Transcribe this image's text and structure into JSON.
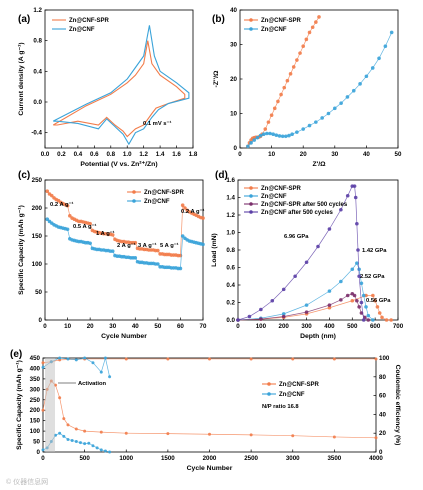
{
  "colors": {
    "cnf_spr": "#f27c4a",
    "cnf": "#3aa3d9",
    "cnf_spr_500": "#7b2f6b",
    "cnf_500": "#5b3fa6"
  },
  "watermark": "© 仪器信息网",
  "chart_data": [
    {
      "id": "a",
      "panel": "(a)",
      "type": "line",
      "xlabel": "Potential (V vs. Zn²⁺/Zn)",
      "ylabel": "Current density (A g⁻¹)",
      "xlim": [
        0,
        1.8
      ],
      "ylim": [
        -0.6,
        1.2
      ],
      "xticks": [
        "0.0",
        "0.2",
        "0.4",
        "0.6",
        "0.8",
        "1.0",
        "1.2",
        "1.4",
        "1.6",
        "1.8"
      ],
      "yticks": [
        "-0.4",
        "0.0",
        "0.4",
        "0.8",
        "1.2"
      ],
      "annotation": "0.1 mV s⁻¹",
      "legend": [
        "Zn@CNF-SPR",
        "Zn@CNF"
      ],
      "series": [
        {
          "name": "Zn@CNF-SPR",
          "color": "#f27c4a",
          "x": [
            0.1,
            0.5,
            0.8,
            1.0,
            1.1,
            1.2,
            1.25,
            1.3,
            1.4,
            1.6,
            1.7,
            1.7,
            1.5,
            1.35,
            1.3,
            1.2,
            1.1,
            1.0,
            0.95,
            0.85,
            0.75,
            0.65,
            0.4,
            0.15,
            0.1
          ],
          "y": [
            -0.3,
            -0.05,
            0.1,
            0.25,
            0.35,
            0.5,
            0.8,
            0.5,
            0.35,
            0.2,
            0.1,
            0.05,
            -0.02,
            -0.08,
            -0.15,
            -0.3,
            -0.35,
            -0.45,
            -0.38,
            -0.3,
            -0.2,
            -0.3,
            -0.25,
            -0.3,
            -0.3
          ]
        },
        {
          "name": "Zn@CNF",
          "color": "#3aa3d9",
          "x": [
            0.1,
            0.5,
            0.8,
            1.0,
            1.1,
            1.2,
            1.27,
            1.33,
            1.4,
            1.6,
            1.75,
            1.75,
            1.5,
            1.38,
            1.3,
            1.2,
            1.1,
            1.02,
            0.95,
            0.85,
            0.75,
            0.65,
            0.4,
            0.15,
            0.1
          ],
          "y": [
            -0.25,
            -0.03,
            0.12,
            0.3,
            0.45,
            0.6,
            1.0,
            0.6,
            0.4,
            0.25,
            0.12,
            0.05,
            -0.02,
            -0.1,
            -0.2,
            -0.35,
            -0.4,
            -0.55,
            -0.42,
            -0.32,
            -0.22,
            -0.35,
            -0.28,
            -0.25,
            -0.25
          ]
        }
      ]
    },
    {
      "id": "b",
      "panel": "(b)",
      "type": "scatter",
      "xlabel": "Z'/Ω",
      "ylabel": "-Z''/Ω",
      "xlim": [
        0,
        50
      ],
      "ylim": [
        0,
        40
      ],
      "xticks": [
        "0",
        "10",
        "20",
        "30",
        "40",
        "50"
      ],
      "yticks": [
        "0",
        "10",
        "20",
        "30",
        "40"
      ],
      "legend": [
        "Zn@CNF-SPR",
        "Zn@CNF"
      ],
      "series": [
        {
          "name": "Zn@CNF-SPR",
          "color": "#f27c4a",
          "x": [
            2.5,
            3,
            3.5,
            4,
            4.5,
            5,
            5.5,
            6,
            6.5,
            7,
            8,
            9,
            10,
            11,
            12,
            13,
            14,
            15,
            16,
            17,
            18,
            19,
            20,
            21,
            22,
            23,
            24,
            25
          ],
          "y": [
            0.5,
            1.5,
            2.3,
            2.8,
            3.0,
            3.1,
            3.1,
            3.2,
            3.4,
            4,
            5.5,
            7.5,
            9.5,
            11.5,
            13.5,
            15.5,
            17.5,
            19.5,
            21.5,
            23.5,
            25.5,
            27.5,
            29.5,
            31.5,
            33.5,
            35,
            36.5,
            38
          ]
        },
        {
          "name": "Zn@CNF",
          "color": "#3aa3d9",
          "x": [
            2.5,
            3.5,
            4.5,
            5.5,
            6.5,
            7.5,
            8.5,
            9.5,
            10.5,
            11.5,
            12.5,
            13.5,
            14.5,
            15.5,
            16.5,
            18,
            20,
            22,
            24,
            26,
            28,
            30,
            32,
            34,
            36,
            38,
            40,
            42,
            44,
            46,
            48
          ],
          "y": [
            0.5,
            1.5,
            2.3,
            3,
            3.6,
            4,
            4.2,
            4.2,
            4.0,
            3.7,
            3.5,
            3.4,
            3.4,
            3.6,
            4.0,
            4.6,
            5.5,
            6.5,
            7.5,
            8.7,
            10,
            11.5,
            13,
            14.8,
            16.6,
            18.6,
            20.8,
            23.2,
            26,
            29.5,
            33.5
          ]
        }
      ]
    },
    {
      "id": "c",
      "panel": "(c)",
      "type": "scatter",
      "xlabel": "Cycle Number",
      "ylabel": "Specific Capacity (mAh g⁻¹)",
      "xlim": [
        0,
        70
      ],
      "ylim": [
        0,
        250
      ],
      "xticks": [
        "0",
        "10",
        "20",
        "30",
        "40",
        "50",
        "60",
        "70"
      ],
      "yticks": [
        "0",
        "50",
        "100",
        "150",
        "200",
        "250"
      ],
      "legend": [
        "Zn@CNF-SPR",
        "Zn@CNF"
      ],
      "rate_labels": [
        "0.2 A g⁻¹",
        "0.5 A g⁻¹",
        "1 A g⁻¹",
        "2 A g⁻¹",
        "3 A g⁻¹",
        "5 A g⁻¹",
        "0.2 A g⁻¹"
      ],
      "series": [
        {
          "name": "Zn@CNF-SPR",
          "color": "#f27c4a",
          "x": [
            1,
            2,
            3,
            4,
            5,
            6,
            7,
            8,
            9,
            10,
            11,
            12,
            13,
            14,
            15,
            16,
            17,
            18,
            19,
            20,
            21,
            22,
            23,
            24,
            25,
            26,
            27,
            28,
            29,
            30,
            31,
            32,
            33,
            34,
            35,
            36,
            37,
            38,
            39,
            40,
            41,
            42,
            43,
            44,
            45,
            46,
            47,
            48,
            49,
            50,
            51,
            52,
            53,
            54,
            55,
            56,
            57,
            58,
            59,
            60,
            61,
            62,
            63,
            64,
            65,
            66,
            67,
            68,
            69,
            70
          ],
          "y": [
            230,
            225,
            222,
            218,
            215,
            213,
            210,
            208,
            206,
            204,
            186,
            182,
            180,
            178,
            176,
            176,
            175,
            174,
            173,
            172,
            160,
            158,
            157,
            156,
            155,
            154,
            154,
            153,
            153,
            152,
            144,
            142,
            141,
            140,
            140,
            139,
            139,
            138,
            138,
            138,
            128,
            127,
            127,
            126,
            126,
            125,
            125,
            125,
            124,
            124,
            118,
            118,
            117,
            117,
            117,
            116,
            116,
            116,
            115,
            115,
            205,
            200,
            196,
            193,
            191,
            189,
            187,
            185,
            183,
            182
          ]
        },
        {
          "name": "Zn@CNF",
          "color": "#3aa3d9",
          "x": [
            1,
            2,
            3,
            4,
            5,
            6,
            7,
            8,
            9,
            10,
            11,
            12,
            13,
            14,
            15,
            16,
            17,
            18,
            19,
            20,
            21,
            22,
            23,
            24,
            25,
            26,
            27,
            28,
            29,
            30,
            31,
            32,
            33,
            34,
            35,
            36,
            37,
            38,
            39,
            40,
            41,
            42,
            43,
            44,
            45,
            46,
            47,
            48,
            49,
            50,
            51,
            52,
            53,
            54,
            55,
            56,
            57,
            58,
            59,
            60,
            61,
            62,
            63,
            64,
            65,
            66,
            67,
            68,
            69,
            70
          ],
          "y": [
            180,
            176,
            173,
            170,
            168,
            166,
            165,
            164,
            163,
            162,
            145,
            143,
            142,
            141,
            140,
            140,
            139,
            138,
            138,
            137,
            128,
            127,
            126,
            126,
            125,
            125,
            124,
            124,
            123,
            123,
            115,
            114,
            114,
            113,
            113,
            112,
            112,
            111,
            111,
            111,
            104,
            103,
            103,
            102,
            102,
            101,
            101,
            101,
            100,
            100,
            95,
            95,
            94,
            94,
            94,
            93,
            93,
            93,
            92,
            92,
            150,
            146,
            143,
            141,
            140,
            139,
            138,
            137,
            136,
            135
          ]
        }
      ]
    },
    {
      "id": "d",
      "panel": "(d)",
      "type": "line",
      "xlabel": "Depth (nm)",
      "ylabel": "Load (mN)",
      "xlim": [
        0,
        700
      ],
      "ylim": [
        0,
        1.6
      ],
      "xticks": [
        "0",
        "100",
        "200",
        "300",
        "400",
        "500",
        "600",
        "700"
      ],
      "yticks": [
        "0.0",
        "0.2",
        "0.4",
        "0.6",
        "0.8",
        "1.0",
        "1.2",
        "1.4",
        "1.6"
      ],
      "legend": [
        "Zn@CNF-SPR",
        "Zn@CNF",
        "Zn@CNF-SPR  after 500 cycles",
        "Zn@CNF    after 500 cycles"
      ],
      "annotations": [
        "6.96 GPa",
        "1.42 GPa",
        "2.52 GPa",
        "0.56 GPa"
      ],
      "series": [
        {
          "name": "Zn@CNF-SPR",
          "color": "#f27c4a",
          "x": [
            0,
            100,
            200,
            300,
            400,
            500,
            560,
            590,
            600,
            610,
            620,
            630,
            650,
            670
          ],
          "y": [
            0,
            0.01,
            0.03,
            0.07,
            0.14,
            0.22,
            0.28,
            0.28,
            0.22,
            0.15,
            0.08,
            0.03,
            0.0,
            0.0
          ]
        },
        {
          "name": "Zn@CNF",
          "color": "#3aa3d9",
          "x": [
            0,
            100,
            200,
            300,
            400,
            450,
            500,
            520,
            530,
            540,
            550,
            560,
            570,
            590
          ],
          "y": [
            0,
            0.02,
            0.07,
            0.17,
            0.33,
            0.44,
            0.58,
            0.65,
            0.58,
            0.42,
            0.28,
            0.15,
            0.05,
            0.0
          ]
        },
        {
          "name": "Zn@CNF-SPR  after 500 cycles",
          "color": "#7b2f6b",
          "x": [
            0,
            100,
            200,
            300,
            400,
            450,
            480,
            500,
            510,
            520,
            530,
            540,
            555,
            570
          ],
          "y": [
            0,
            0.01,
            0.04,
            0.09,
            0.17,
            0.23,
            0.28,
            0.3,
            0.28,
            0.22,
            0.15,
            0.08,
            0.03,
            0.0
          ]
        },
        {
          "name": "Zn@CNF    after 500 cycles",
          "color": "#5b3fa6",
          "x": [
            0,
            50,
            100,
            150,
            200,
            250,
            300,
            350,
            400,
            450,
            480,
            500,
            510,
            515,
            520,
            525,
            530,
            540,
            550
          ],
          "y": [
            0,
            0.04,
            0.12,
            0.22,
            0.35,
            0.5,
            0.66,
            0.84,
            1.04,
            1.26,
            1.42,
            1.53,
            1.53,
            1.4,
            1.1,
            0.8,
            0.5,
            0.2,
            0.0
          ]
        }
      ]
    },
    {
      "id": "e",
      "panel": "(e)",
      "type": "scatter",
      "xlabel": "Cycle Number",
      "ylabel": "Specific Capacity (mAh g⁻¹)",
      "y2label": "Coulombic efficiency (%)",
      "xlim": [
        0,
        4000
      ],
      "ylim": [
        0,
        450
      ],
      "y2lim": [
        0,
        100
      ],
      "xticks": [
        "0",
        "500",
        "1000",
        "1500",
        "2000",
        "2500",
        "3000",
        "3500",
        "4000"
      ],
      "yticks": [
        "0",
        "50",
        "100",
        "150",
        "200",
        "250",
        "300",
        "350",
        "400",
        "450"
      ],
      "y2ticks": [
        "0",
        "20",
        "40",
        "60",
        "80",
        "100"
      ],
      "annotations": [
        "Activation",
        "N/P ratio 16.8"
      ],
      "legend": [
        "Zn@CNF-SPR",
        "Zn@CNF"
      ],
      "series": [
        {
          "name": "Zn@CNF-SPR capacity",
          "color": "#f27c4a",
          "x": [
            0,
            50,
            100,
            150,
            200,
            250,
            300,
            400,
            500,
            700,
            1000,
            1500,
            2000,
            2500,
            3000,
            3500,
            4000
          ],
          "y": [
            200,
            300,
            340,
            320,
            260,
            160,
            130,
            110,
            100,
            95,
            90,
            88,
            85,
            82,
            78,
            72,
            68
          ]
        },
        {
          "name": "Zn@CNF capacity",
          "color": "#3aa3d9",
          "x": [
            0,
            50,
            100,
            150,
            200,
            250,
            300,
            350,
            400,
            450,
            500,
            550,
            600,
            650,
            700,
            750,
            800
          ],
          "y": [
            10,
            20,
            50,
            80,
            90,
            75,
            60,
            55,
            50,
            45,
            40,
            42,
            30,
            20,
            10,
            5,
            0
          ]
        },
        {
          "name": "Zn@CNF-SPR CE",
          "color": "#f27c4a",
          "x": [
            0,
            100,
            200,
            500,
            1000,
            1500,
            2000,
            2500,
            3000,
            3500,
            4000
          ],
          "y": [
            95,
            96,
            98,
            99,
            99,
            99,
            99,
            99,
            99,
            99,
            99
          ]
        },
        {
          "name": "Zn@CNF CE",
          "color": "#3aa3d9",
          "x": [
            0,
            100,
            200,
            300,
            400,
            500,
            600,
            700,
            750,
            800
          ],
          "y": [
            90,
            96,
            100,
            99,
            98,
            100,
            95,
            85,
            100,
            80
          ]
        }
      ]
    }
  ]
}
